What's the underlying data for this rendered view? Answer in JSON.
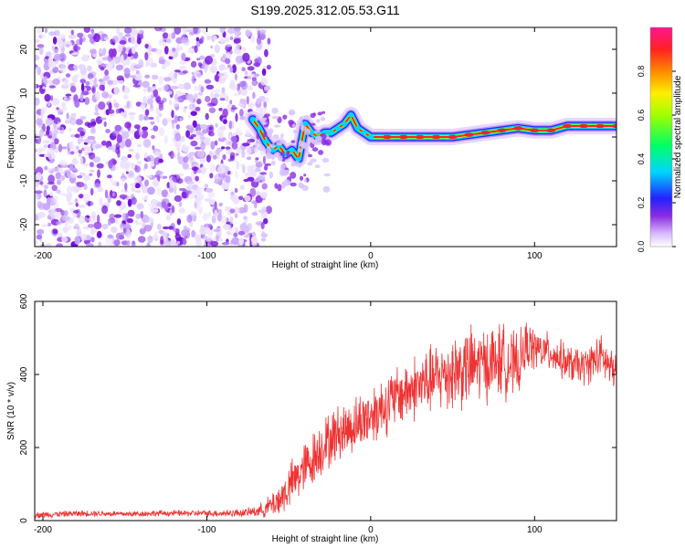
{
  "title": "S199.2025.312.05.53.G11",
  "colors": {
    "spectral_dots": "#7b1fe6",
    "snr_line": "#ee3333",
    "axis": "#000000",
    "colorbar_stops": [
      "#ffffff",
      "#c9a3ff",
      "#8a2be2",
      "#2222ff",
      "#00d5ff",
      "#00ff55",
      "#e6ff00",
      "#ffaa00",
      "#ff2222",
      "#ff1493"
    ]
  },
  "chart_data": [
    {
      "type": "heatmap",
      "title": "S199.2025.312.05.53.G11",
      "xlabel": "Height of straight line (km)",
      "ylabel": "Frequency (Hz)",
      "xlim": [
        -205,
        150
      ],
      "ylim": [
        -25,
        25
      ],
      "xticks": [
        -200,
        -100,
        0,
        100
      ],
      "xtick_labels": [
        "-200",
        "-100",
        "0",
        "100"
      ],
      "yticks": [
        -20,
        -10,
        0,
        10,
        20
      ],
      "ytick_labels": [
        "-20",
        "-10",
        "0",
        "10",
        "20"
      ],
      "noise_region_x": [
        -205,
        -70
      ],
      "ridge": {
        "description": "dominant-frequency ridge",
        "x": [
          -72,
          -68,
          -64,
          -60,
          -56,
          -52,
          -48,
          -44,
          -40,
          -36,
          -32,
          -28,
          -24,
          -20,
          -16,
          -12,
          -8,
          -4,
          0,
          10,
          20,
          30,
          40,
          50,
          60,
          70,
          80,
          90,
          100,
          110,
          120,
          130,
          140,
          150
        ],
        "y": [
          4,
          2,
          -1,
          -3,
          -2,
          -4,
          -3,
          -5,
          3,
          1,
          0,
          1,
          1,
          2,
          3,
          5,
          2,
          1,
          0,
          0,
          0,
          0,
          0,
          0,
          0.5,
          1,
          1.5,
          2,
          1.5,
          1.5,
          2.5,
          2.5,
          2.5,
          2.5
        ]
      },
      "colorbar": {
        "label": "Normalized spectral amplitude",
        "range": [
          0,
          1
        ],
        "ticks": [
          0,
          0.2,
          0.4,
          0.6,
          0.8
        ],
        "tick_labels": [
          "0.0",
          "0.2",
          "0.4",
          "0.6",
          "0.8"
        ]
      }
    },
    {
      "type": "line",
      "xlabel": "Height of straight line (km)",
      "ylabel": "SNR (10 * v/v)",
      "xlim": [
        -205,
        150
      ],
      "ylim": [
        0,
        600
      ],
      "xticks": [
        -200,
        -100,
        0,
        100
      ],
      "xtick_labels": [
        "-200",
        "-100",
        "0",
        "100"
      ],
      "yticks": [
        0,
        200,
        400,
        600
      ],
      "ytick_labels": [
        "0",
        "200",
        "400",
        "600"
      ],
      "series": [
        {
          "name": "SNR",
          "x": [
            -205,
            -190,
            -170,
            -150,
            -130,
            -110,
            -90,
            -75,
            -65,
            -55,
            -45,
            -35,
            -30,
            -25,
            -20,
            -10,
            0,
            10,
            20,
            30,
            40,
            50,
            60,
            70,
            80,
            90,
            95,
            100,
            110,
            120,
            130,
            140,
            150
          ],
          "mid": [
            15,
            18,
            20,
            18,
            20,
            20,
            20,
            22,
            30,
            60,
            120,
            170,
            200,
            220,
            240,
            260,
            290,
            320,
            350,
            370,
            390,
            410,
            420,
            430,
            440,
            420,
            480,
            470,
            460,
            430,
            420,
            450,
            400
          ],
          "spread": [
            10,
            10,
            10,
            10,
            10,
            10,
            12,
            14,
            25,
            60,
            80,
            90,
            90,
            90,
            90,
            90,
            100,
            100,
            100,
            110,
            110,
            130,
            130,
            120,
            120,
            100,
            80,
            70,
            60,
            60,
            60,
            70,
            70
          ]
        }
      ]
    }
  ]
}
